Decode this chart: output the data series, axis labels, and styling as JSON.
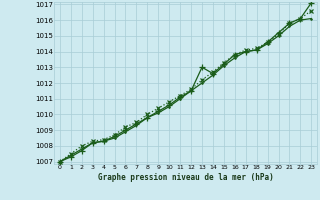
{
  "xlabel": "Graphe pression niveau de la mer (hPa)",
  "x_ticks": [
    0,
    1,
    2,
    3,
    4,
    5,
    6,
    7,
    8,
    9,
    10,
    11,
    12,
    13,
    14,
    15,
    16,
    17,
    18,
    19,
    20,
    21,
    22,
    23
  ],
  "y_ticks": [
    1007,
    1008,
    1009,
    1010,
    1011,
    1012,
    1013,
    1014,
    1015,
    1016,
    1017
  ],
  "ylim": [
    1007,
    1017
  ],
  "xlim": [
    0,
    23
  ],
  "bg_color": "#ceeaf0",
  "grid_color": "#a8cdd6",
  "line_color": "#1a5c1a",
  "series1": [
    1007.0,
    1007.4,
    1007.8,
    1008.2,
    1008.3,
    1008.5,
    1008.9,
    1009.3,
    1009.8,
    1010.1,
    1010.5,
    1011.0,
    1011.5,
    1012.0,
    1012.5,
    1013.1,
    1013.6,
    1014.0,
    1014.1,
    1014.5,
    1015.0,
    1015.6,
    1016.0,
    1016.1
  ],
  "series2": [
    1007.0,
    1007.3,
    1007.7,
    1008.2,
    1008.3,
    1008.6,
    1009.0,
    1009.4,
    1009.8,
    1010.2,
    1010.6,
    1011.1,
    1011.5,
    1013.0,
    1012.6,
    1013.2,
    1013.8,
    1014.0,
    1014.1,
    1014.6,
    1015.2,
    1015.8,
    1016.1,
    1017.1
  ],
  "series3": [
    1007.0,
    1007.5,
    1008.0,
    1008.3,
    1008.4,
    1008.7,
    1009.2,
    1009.5,
    1010.0,
    1010.4,
    1010.8,
    1011.2,
    1011.6,
    1012.2,
    1012.7,
    1013.3,
    1013.8,
    1014.1,
    1014.2,
    1014.6,
    1015.1,
    1015.8,
    1016.1,
    1016.6
  ]
}
